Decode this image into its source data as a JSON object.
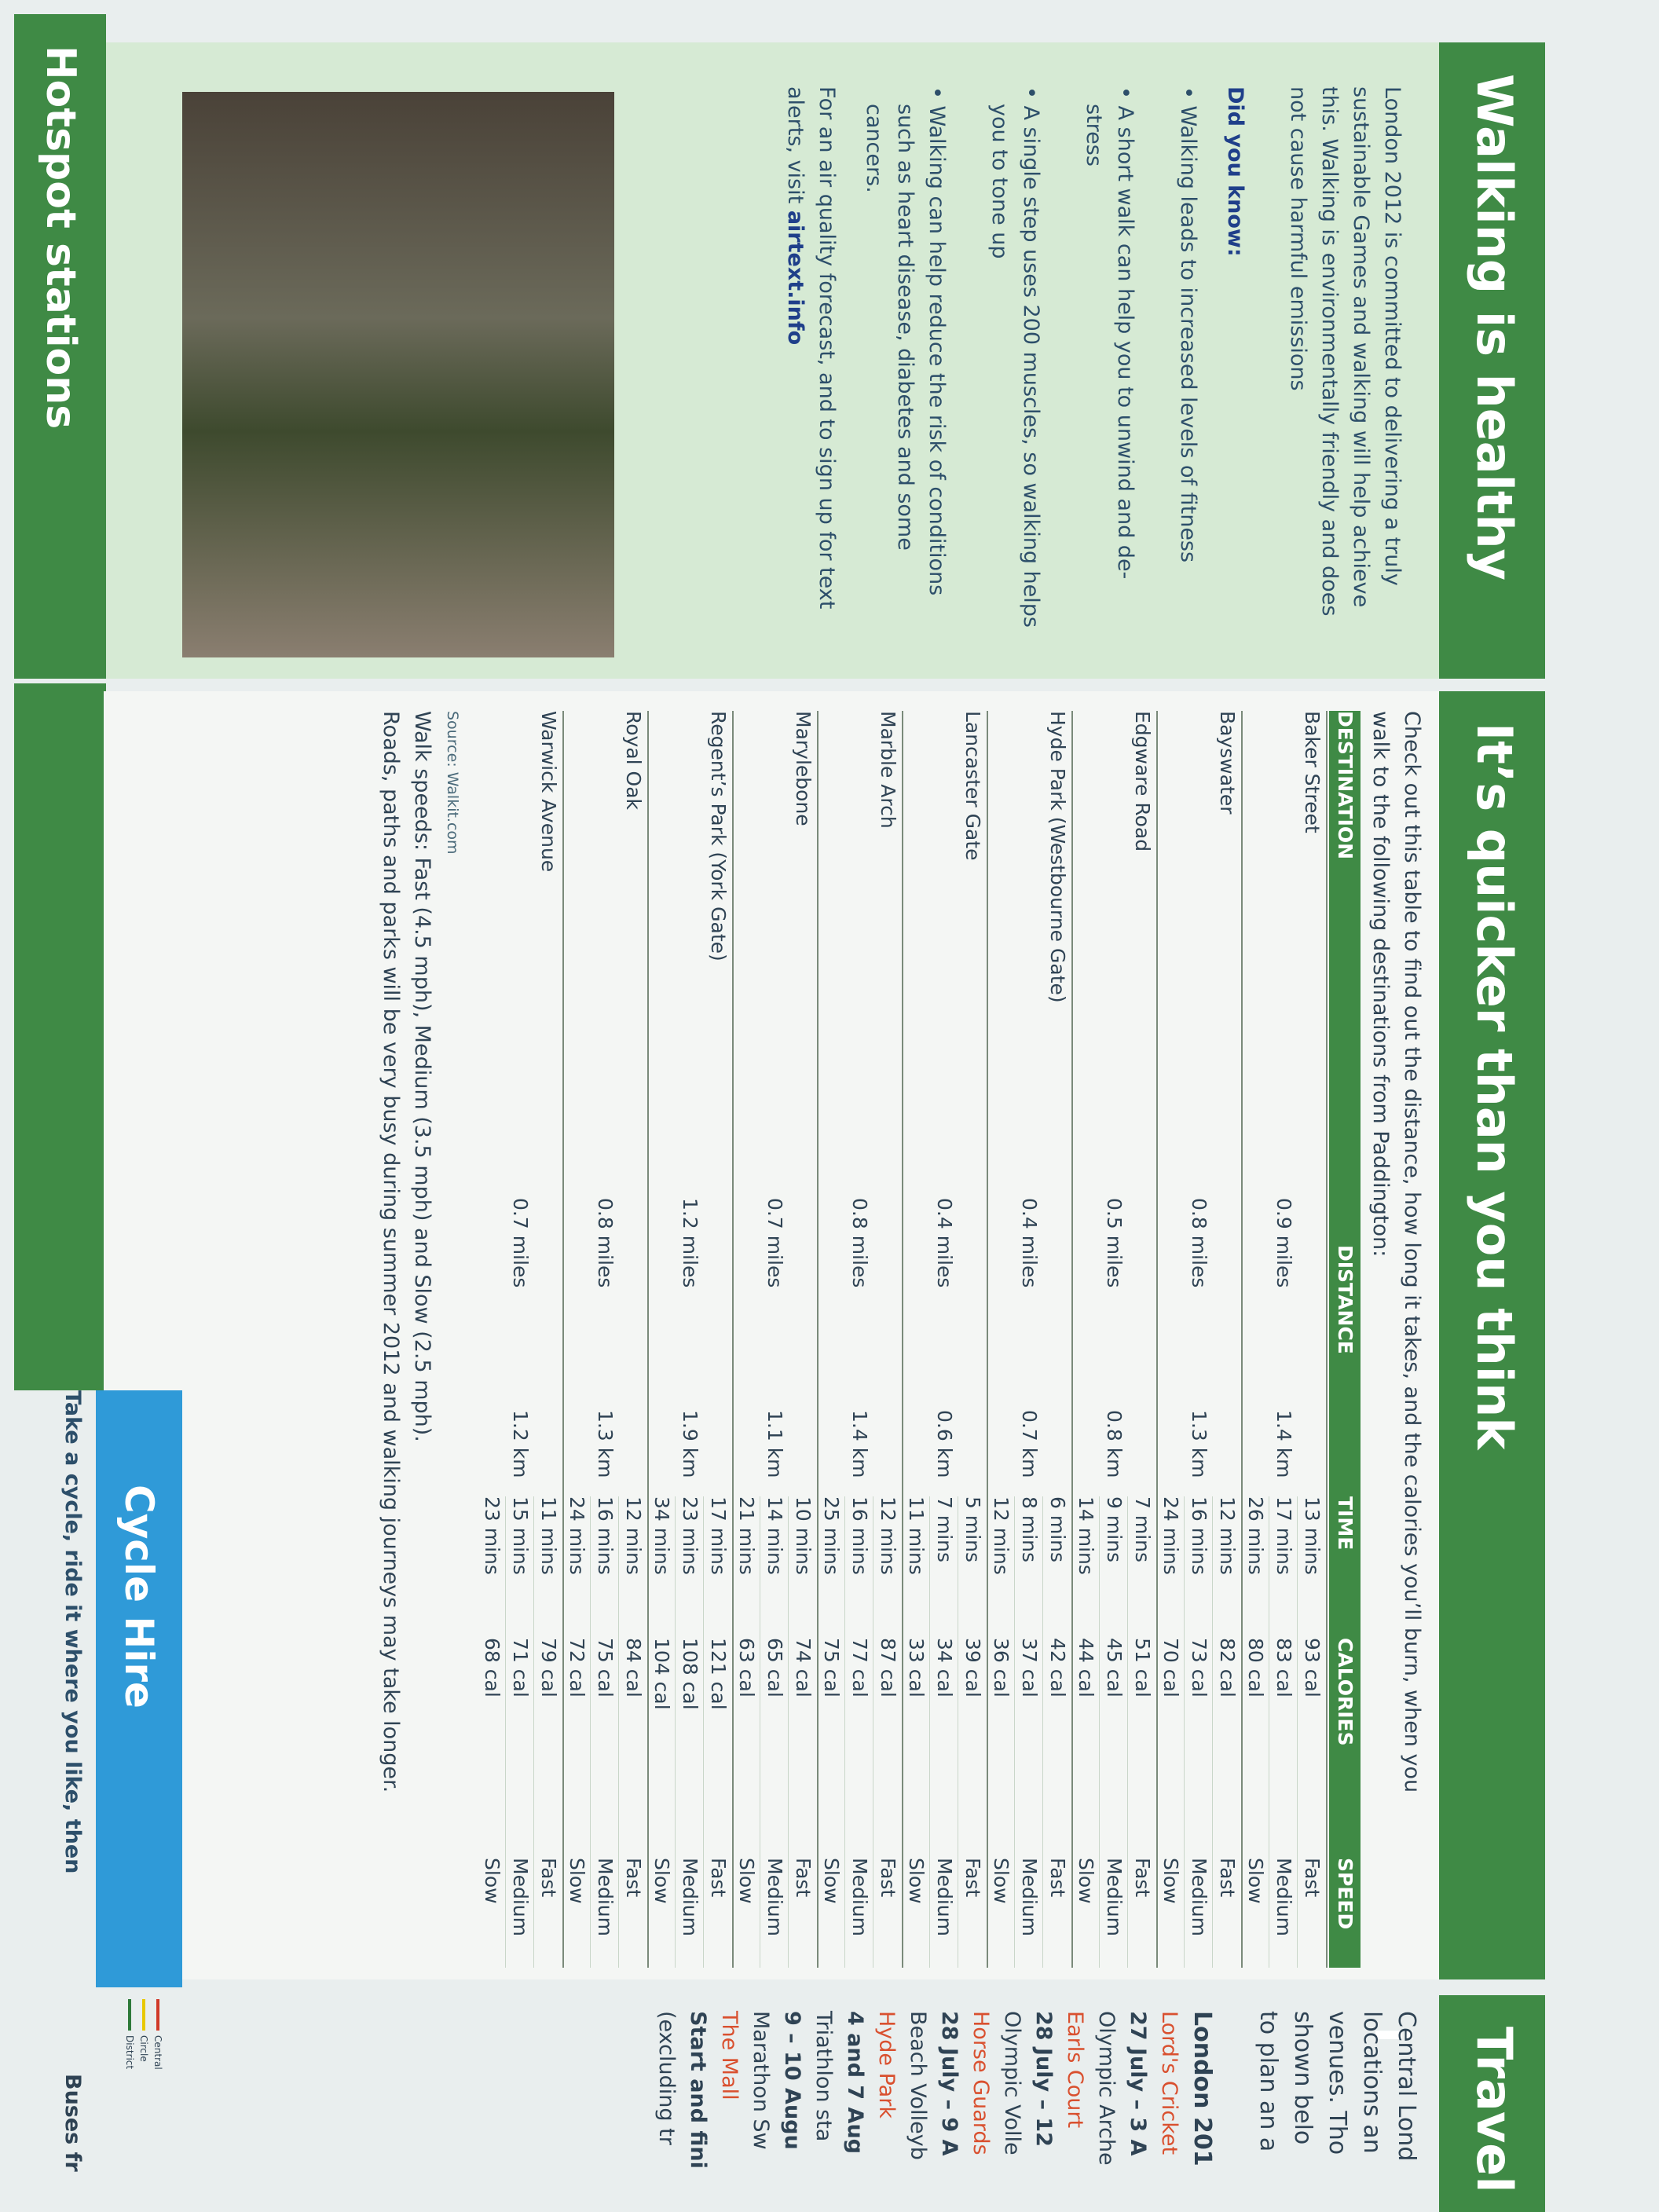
{
  "walking": {
    "title": "Walking is healthy",
    "intro": "London 2012 is committed to delivering a truly sustainable Games and walking will help achieve this. Walking is environmentally friendly and does not cause harmful emissions",
    "did_you_know": "Did you know:",
    "bullets": [
      "Walking leads to increased levels of fitness",
      "A short walk can help you to unwind and de-stress",
      "A single step uses 200 muscles, so walking helps you to tone up",
      "Walking can help reduce the risk of conditions such as heart disease, diabetes and some cancers."
    ],
    "air_text": "For an air quality forecast, and to sign up for text alerts, visit",
    "air_link": "airtext.info"
  },
  "hotspot": {
    "title": "Hotspot stations"
  },
  "quicker": {
    "title": "It’s quicker than you think",
    "intro": "Check out this table to find out the distance, how long it takes, and the calories you’ll burn, when you walk to the following destinations from Paddington:",
    "table": {
      "headers": [
        "DESTINATION",
        "DISTANCE",
        "TIME",
        "CALORIES",
        "SPEED"
      ],
      "rows": [
        {
          "destination": "Baker Street",
          "miles": "0.9 miles",
          "km": "1.4 km",
          "speeds": [
            [
              "13 mins",
              "93 cal",
              "Fast"
            ],
            [
              "17 mins",
              "83 cal",
              "Medium"
            ],
            [
              "26 mins",
              "80 cal",
              "Slow"
            ]
          ]
        },
        {
          "destination": "Bayswater",
          "miles": "0.8 miles",
          "km": "1.3 km",
          "speeds": [
            [
              "12 mins",
              "82 cal",
              "Fast"
            ],
            [
              "16 mins",
              "73 cal",
              "Medium"
            ],
            [
              "24 mins",
              "70 cal",
              "Slow"
            ]
          ]
        },
        {
          "destination": "Edgware Road",
          "miles": "0.5 miles",
          "km": "0.8 km",
          "speeds": [
            [
              "7 mins",
              "51 cal",
              "Fast"
            ],
            [
              "9 mins",
              "45 cal",
              "Medium"
            ],
            [
              "14 mins",
              "44 cal",
              "Slow"
            ]
          ]
        },
        {
          "destination": "Hyde Park (Westbourne Gate)",
          "miles": "0.4 miles",
          "km": "0.7 km",
          "speeds": [
            [
              "6 mins",
              "42 cal",
              "Fast"
            ],
            [
              "8 mins",
              "37 cal",
              "Medium"
            ],
            [
              "12 mins",
              "36 cal",
              "Slow"
            ]
          ]
        },
        {
          "destination": "Lancaster Gate",
          "miles": "0.4 miles",
          "km": "0.6 km",
          "speeds": [
            [
              "5 mins",
              "39 cal",
              "Fast"
            ],
            [
              "7 mins",
              "34 cal",
              "Medium"
            ],
            [
              "11 mins",
              "33 cal",
              "Slow"
            ]
          ]
        },
        {
          "destination": "Marble Arch",
          "miles": "0.8 miles",
          "km": "1.4 km",
          "speeds": [
            [
              "12 mins",
              "87 cal",
              "Fast"
            ],
            [
              "16 mins",
              "77 cal",
              "Medium"
            ],
            [
              "25 mins",
              "75 cal",
              "Slow"
            ]
          ]
        },
        {
          "destination": "Marylebone",
          "miles": "0.7 miles",
          "km": "1.1 km",
          "speeds": [
            [
              "10 mins",
              "74 cal",
              "Fast"
            ],
            [
              "14 mins",
              "65 cal",
              "Medium"
            ],
            [
              "21 mins",
              "63 cal",
              "Slow"
            ]
          ]
        },
        {
          "destination": "Regent’s Park (York Gate)",
          "miles": "1.2 miles",
          "km": "1.9 km",
          "speeds": [
            [
              "17 mins",
              "121 cal",
              "Fast"
            ],
            [
              "23 mins",
              "108 cal",
              "Medium"
            ],
            [
              "34 mins",
              "104 cal",
              "Slow"
            ]
          ]
        },
        {
          "destination": "Royal Oak",
          "miles": "0.8 miles",
          "km": "1.3 km",
          "speeds": [
            [
              "12 mins",
              "84 cal",
              "Fast"
            ],
            [
              "16 mins",
              "75 cal",
              "Medium"
            ],
            [
              "24 mins",
              "72 cal",
              "Slow"
            ]
          ]
        },
        {
          "destination": "Warwick Avenue",
          "miles": "0.7 miles",
          "km": "1.2 km",
          "speeds": [
            [
              "11 mins",
              "79 cal",
              "Fast"
            ],
            [
              "15 mins",
              "71 cal",
              "Medium"
            ],
            [
              "23 mins",
              "68 cal",
              "Slow"
            ]
          ]
        }
      ]
    },
    "source": "Source: Walkit.com",
    "notes": [
      "Walk speeds: Fast (4.5 mph), Medium (3.5 mph) and Slow (2.5 mph).",
      "Roads, paths and parks will be very busy during summer 2012 and walking journeys may take longer."
    ]
  },
  "cycle": {
    "title": "Cycle Hire",
    "text": "Take a cycle, ride it where you like, then"
  },
  "travel": {
    "title": "Travel i",
    "lines": [
      "Central Lond",
      "locations an",
      "venues. Tho",
      "shown belo",
      "to plan an a"
    ],
    "subtitle": "London 201",
    "venues": [
      [
        "Lord's Cricket",
        "27 July – 3 A",
        "Olympic Arche"
      ],
      [
        "Earls Court",
        "28 July – 12",
        "Olympic Volle"
      ],
      [
        "Horse Guards",
        "28 July – 9 A",
        "Beach Volleyb"
      ],
      [
        "Hyde Park",
        "4 and 7 Aug",
        "Triathlon sta"
      ],
      [
        "",
        "9 – 10 Augu",
        "Marathon Sw"
      ],
      [
        "The Mall",
        "Start and fini",
        "(excluding tr"
      ]
    ],
    "legend": [
      "Central",
      "Circle",
      "District"
    ],
    "buses": "Buses fr"
  }
}
